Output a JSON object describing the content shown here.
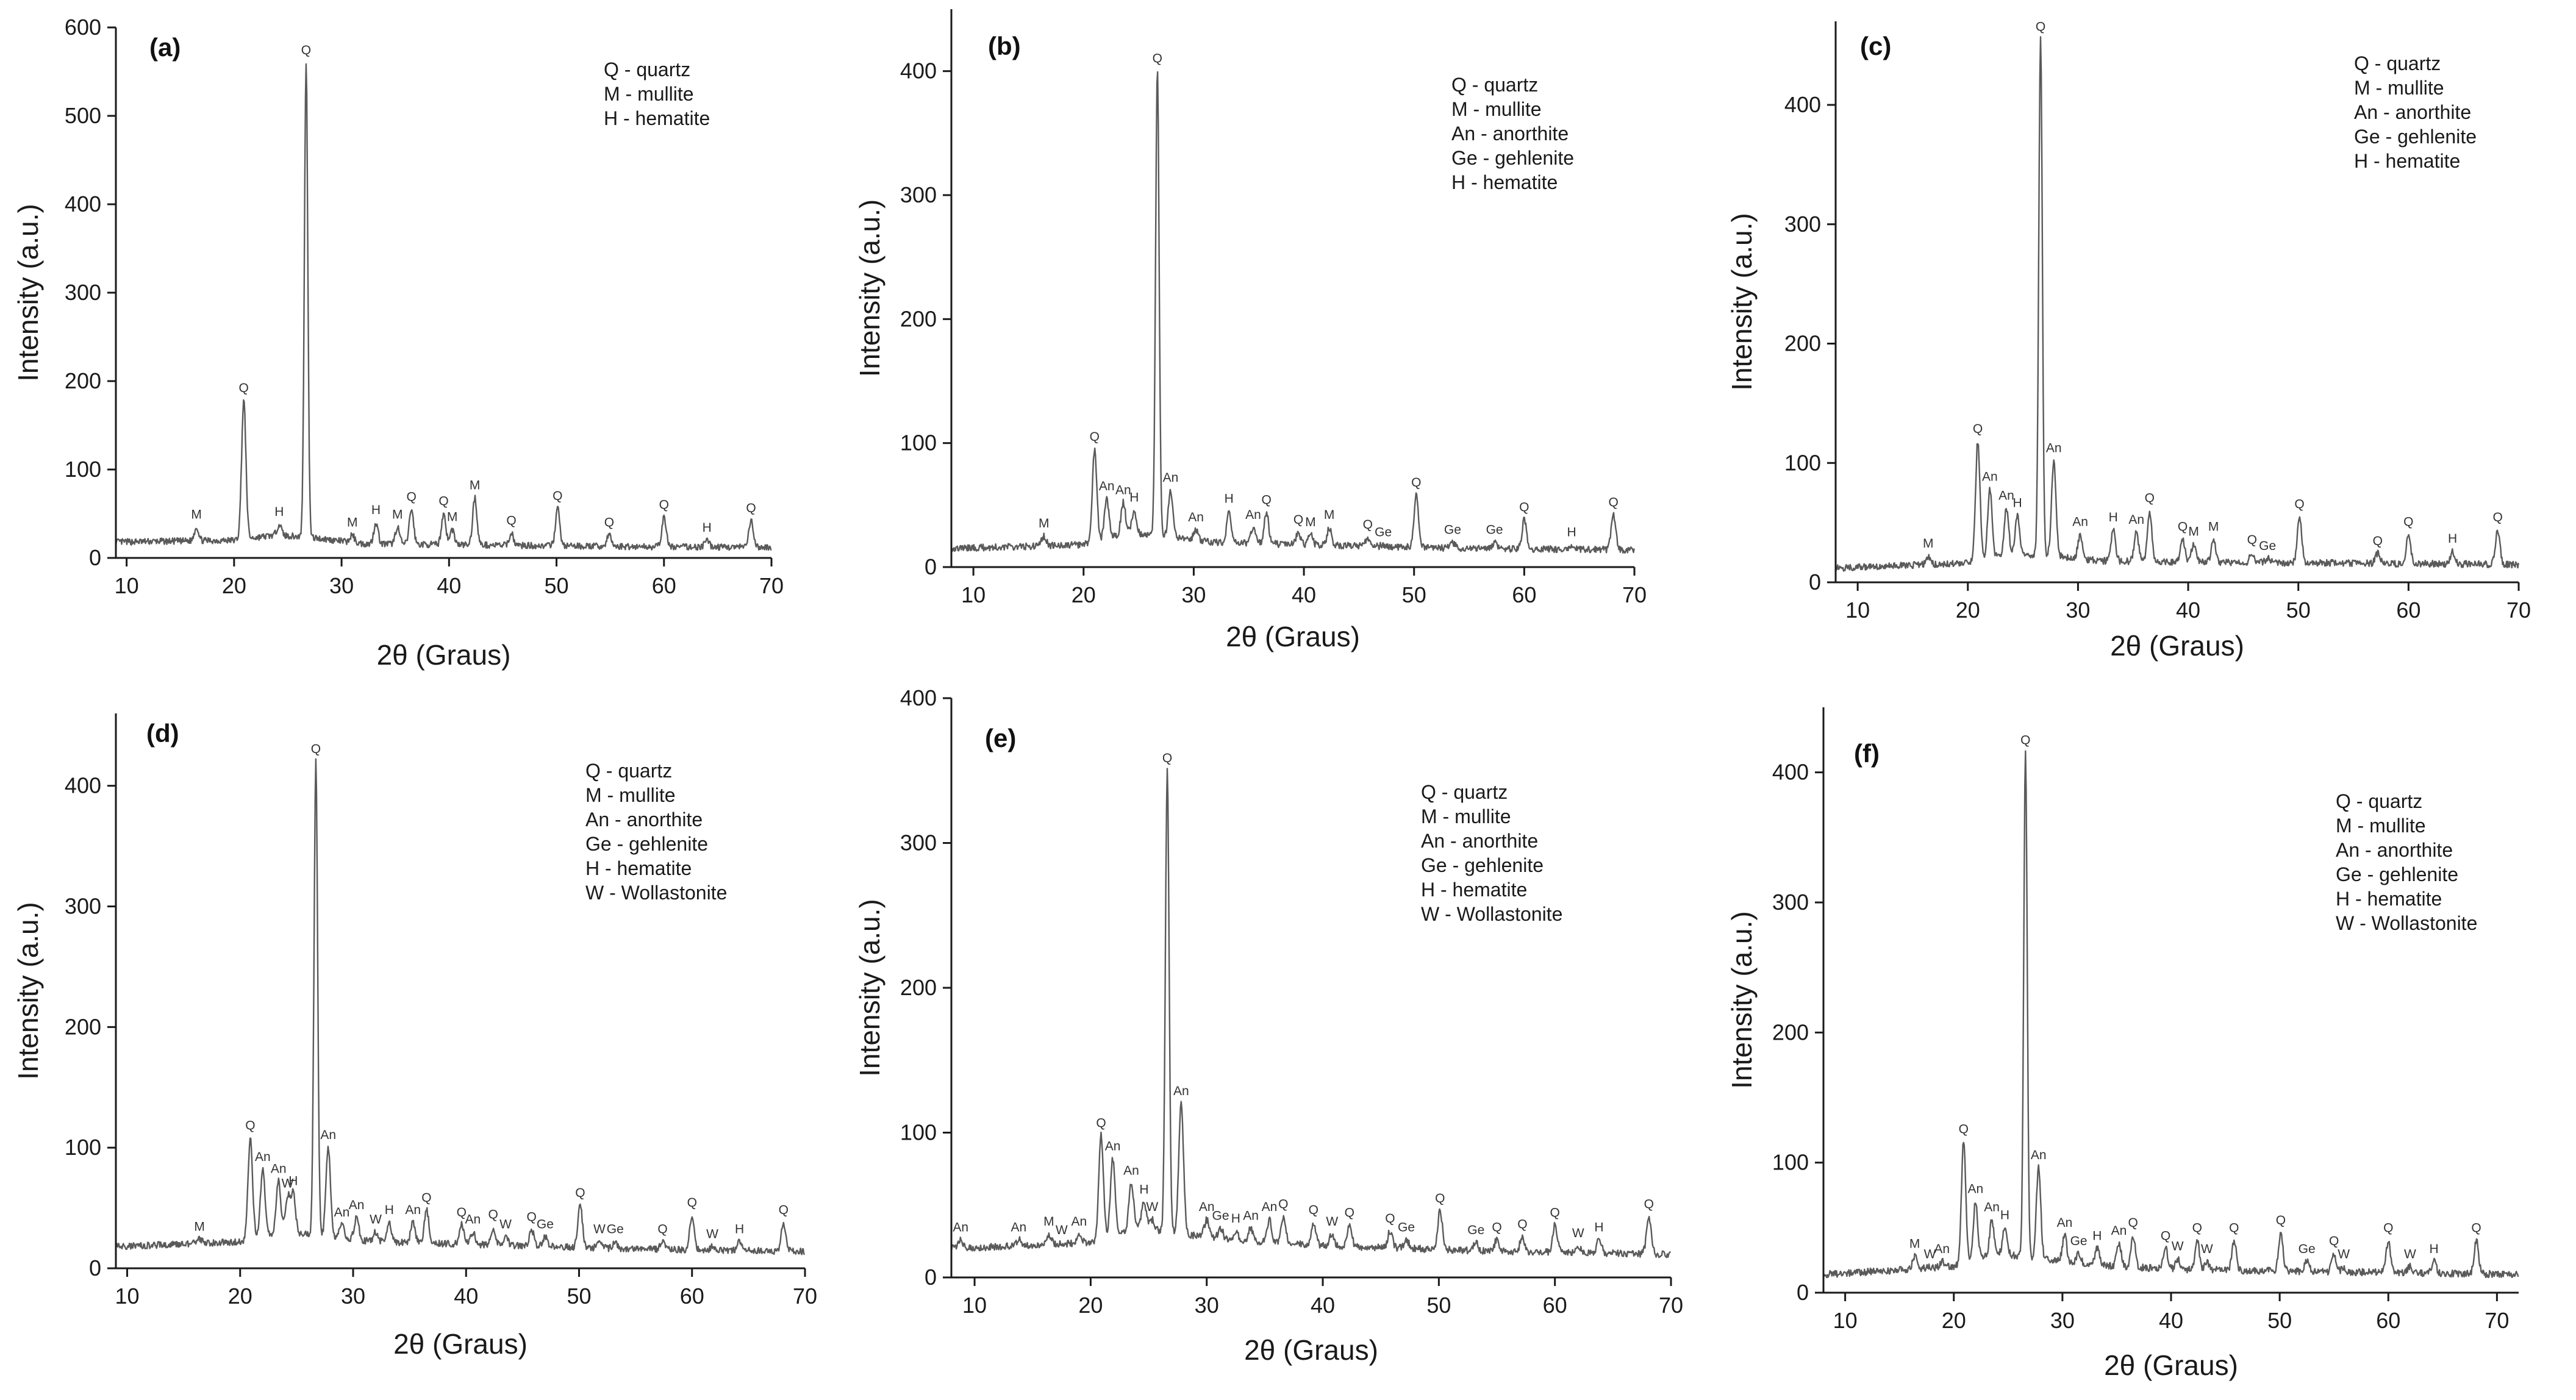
{
  "chart_data": [
    {
      "type": "line",
      "panel": "(a)",
      "xlabel": "2θ (Graus)",
      "ylabel": "Intensity (a.u.)",
      "xlim": [
        9,
        70
      ],
      "ylim": [
        0,
        600
      ],
      "xticks": [
        10,
        20,
        30,
        40,
        50,
        60,
        70
      ],
      "yticks": [
        0,
        100,
        200,
        300,
        400,
        500,
        600
      ],
      "legend": [
        "Q - quartz",
        "M - mullite",
        "H - hematite"
      ],
      "baseline": [
        [
          9,
          18
        ],
        [
          20,
          20
        ],
        [
          24,
          26
        ],
        [
          28,
          22
        ],
        [
          32,
          16
        ],
        [
          40,
          15
        ],
        [
          55,
          13
        ],
        [
          70,
          12
        ]
      ],
      "peaks": [
        {
          "x": 16.5,
          "y": 35,
          "label": "M"
        },
        {
          "x": 20.9,
          "y": 178,
          "label": "Q"
        },
        {
          "x": 24.2,
          "y": 38,
          "label": "H"
        },
        {
          "x": 26.7,
          "y": 560,
          "label": "Q"
        },
        {
          "x": 31.0,
          "y": 26,
          "label": "M"
        },
        {
          "x": 33.2,
          "y": 40,
          "label": "H"
        },
        {
          "x": 35.2,
          "y": 35,
          "label": "M"
        },
        {
          "x": 36.5,
          "y": 55,
          "label": "Q"
        },
        {
          "x": 39.5,
          "y": 50,
          "label": "Q"
        },
        {
          "x": 40.3,
          "y": 32,
          "label": "M"
        },
        {
          "x": 42.4,
          "y": 68,
          "label": "M"
        },
        {
          "x": 45.8,
          "y": 28,
          "label": "Q"
        },
        {
          "x": 50.1,
          "y": 56,
          "label": "Q"
        },
        {
          "x": 54.9,
          "y": 26,
          "label": "Q"
        },
        {
          "x": 60.0,
          "y": 46,
          "label": "Q"
        },
        {
          "x": 64.0,
          "y": 20,
          "label": "H"
        },
        {
          "x": 68.1,
          "y": 42,
          "label": "Q"
        }
      ]
    },
    {
      "type": "line",
      "panel": "(b)",
      "xlabel": "2θ (Graus)",
      "ylabel": "Intensity (a.u.)",
      "xlim": [
        8,
        70
      ],
      "ylim": [
        0,
        450
      ],
      "xticks": [
        10,
        20,
        30,
        40,
        50,
        60,
        70
      ],
      "yticks": [
        0,
        100,
        200,
        300,
        400
      ],
      "legend": [
        "Q - quartz",
        "M - mullite",
        "An - anorthite",
        "Ge - gehlenite",
        "H - hematite"
      ],
      "baseline": [
        [
          8,
          15
        ],
        [
          20,
          18
        ],
        [
          24,
          28
        ],
        [
          28,
          24
        ],
        [
          32,
          20
        ],
        [
          40,
          18
        ],
        [
          55,
          15
        ],
        [
          70,
          14
        ]
      ],
      "peaks": [
        {
          "x": 16.4,
          "y": 25,
          "label": "M"
        },
        {
          "x": 21.0,
          "y": 95,
          "label": "Q"
        },
        {
          "x": 22.1,
          "y": 55,
          "label": "An"
        },
        {
          "x": 23.6,
          "y": 52,
          "label": "An"
        },
        {
          "x": 24.6,
          "y": 46,
          "label": "H"
        },
        {
          "x": 26.7,
          "y": 400,
          "label": "Q"
        },
        {
          "x": 27.9,
          "y": 62,
          "label": "An"
        },
        {
          "x": 30.2,
          "y": 30,
          "label": "An"
        },
        {
          "x": 33.2,
          "y": 45,
          "label": "H"
        },
        {
          "x": 35.4,
          "y": 32,
          "label": "An"
        },
        {
          "x": 36.6,
          "y": 44,
          "label": "Q"
        },
        {
          "x": 39.5,
          "y": 28,
          "label": "Q"
        },
        {
          "x": 40.6,
          "y": 26,
          "label": "M"
        },
        {
          "x": 42.3,
          "y": 32,
          "label": "M"
        },
        {
          "x": 45.8,
          "y": 24,
          "label": "Q"
        },
        {
          "x": 47.2,
          "y": 18,
          "label": "Ge"
        },
        {
          "x": 50.2,
          "y": 58,
          "label": "Q"
        },
        {
          "x": 53.5,
          "y": 20,
          "label": "Ge"
        },
        {
          "x": 57.3,
          "y": 20,
          "label": "Ge"
        },
        {
          "x": 60.0,
          "y": 38,
          "label": "Q"
        },
        {
          "x": 64.3,
          "y": 18,
          "label": "H"
        },
        {
          "x": 68.1,
          "y": 42,
          "label": "Q"
        }
      ]
    },
    {
      "type": "line",
      "panel": "(c)",
      "xlabel": "2θ (Graus)",
      "ylabel": "Intensity (a.u.)",
      "xlim": [
        8,
        70
      ],
      "ylim": [
        0,
        470
      ],
      "xticks": [
        10,
        20,
        30,
        40,
        50,
        60,
        70
      ],
      "yticks": [
        0,
        100,
        200,
        300,
        400
      ],
      "legend": [
        "Q - quartz",
        "M - mullite",
        "An - anorthite",
        "Ge - gehlenite",
        "H - hematite"
      ],
      "baseline": [
        [
          8,
          12
        ],
        [
          20,
          16
        ],
        [
          24,
          24
        ],
        [
          28,
          22
        ],
        [
          32,
          18
        ],
        [
          40,
          17
        ],
        [
          55,
          16
        ],
        [
          70,
          15
        ]
      ],
      "peaks": [
        {
          "x": 16.4,
          "y": 22,
          "label": "M"
        },
        {
          "x": 20.9,
          "y": 118,
          "label": "Q"
        },
        {
          "x": 22.0,
          "y": 78,
          "label": "An"
        },
        {
          "x": 23.5,
          "y": 62,
          "label": "An"
        },
        {
          "x": 24.5,
          "y": 56,
          "label": "H"
        },
        {
          "x": 26.6,
          "y": 455,
          "label": "Q"
        },
        {
          "x": 27.8,
          "y": 102,
          "label": "An"
        },
        {
          "x": 30.2,
          "y": 40,
          "label": "An"
        },
        {
          "x": 33.2,
          "y": 44,
          "label": "H"
        },
        {
          "x": 35.3,
          "y": 42,
          "label": "An"
        },
        {
          "x": 36.5,
          "y": 60,
          "label": "Q"
        },
        {
          "x": 39.5,
          "y": 36,
          "label": "Q"
        },
        {
          "x": 40.5,
          "y": 32,
          "label": "M"
        },
        {
          "x": 42.3,
          "y": 36,
          "label": "M"
        },
        {
          "x": 45.8,
          "y": 25,
          "label": "Q"
        },
        {
          "x": 47.2,
          "y": 20,
          "label": "Ge"
        },
        {
          "x": 50.1,
          "y": 55,
          "label": "Q"
        },
        {
          "x": 57.2,
          "y": 24,
          "label": "Q"
        },
        {
          "x": 60.0,
          "y": 40,
          "label": "Q"
        },
        {
          "x": 64.0,
          "y": 26,
          "label": "H"
        },
        {
          "x": 68.1,
          "y": 44,
          "label": "Q"
        }
      ]
    },
    {
      "type": "line",
      "panel": "(d)",
      "xlabel": "2θ (Graus)",
      "ylabel": "Intensity (a.u.)",
      "xlim": [
        9,
        70
      ],
      "ylim": [
        0,
        460
      ],
      "xticks": [
        10,
        20,
        30,
        40,
        50,
        60,
        70
      ],
      "yticks": [
        0,
        100,
        200,
        300,
        400
      ],
      "legend": [
        "Q - quartz",
        "M - mullite",
        "An - anorthite",
        "Ge - gehlenite",
        "H - hematite",
        "W - Wollastonite"
      ],
      "baseline": [
        [
          9,
          18
        ],
        [
          20,
          22
        ],
        [
          24,
          30
        ],
        [
          28,
          26
        ],
        [
          32,
          22
        ],
        [
          40,
          20
        ],
        [
          55,
          16
        ],
        [
          70,
          14
        ]
      ],
      "peaks": [
        {
          "x": 16.4,
          "y": 24,
          "label": "M"
        },
        {
          "x": 20.9,
          "y": 108,
          "label": "Q"
        },
        {
          "x": 22.0,
          "y": 82,
          "label": "An"
        },
        {
          "x": 23.4,
          "y": 72,
          "label": "An"
        },
        {
          "x": 24.2,
          "y": 60,
          "label": "W"
        },
        {
          "x": 24.7,
          "y": 62,
          "label": "H"
        },
        {
          "x": 26.7,
          "y": 420,
          "label": "Q"
        },
        {
          "x": 27.8,
          "y": 100,
          "label": "An"
        },
        {
          "x": 29.0,
          "y": 36,
          "label": "An"
        },
        {
          "x": 30.3,
          "y": 42,
          "label": "An"
        },
        {
          "x": 32.0,
          "y": 30,
          "label": "W"
        },
        {
          "x": 33.2,
          "y": 38,
          "label": "H"
        },
        {
          "x": 35.3,
          "y": 38,
          "label": "An"
        },
        {
          "x": 36.5,
          "y": 48,
          "label": "Q"
        },
        {
          "x": 39.6,
          "y": 36,
          "label": "Q"
        },
        {
          "x": 40.6,
          "y": 30,
          "label": "An"
        },
        {
          "x": 42.4,
          "y": 34,
          "label": "Q"
        },
        {
          "x": 43.5,
          "y": 26,
          "label": "W"
        },
        {
          "x": 45.8,
          "y": 32,
          "label": "Q"
        },
        {
          "x": 47.0,
          "y": 26,
          "label": "Ge"
        },
        {
          "x": 50.1,
          "y": 52,
          "label": "Q"
        },
        {
          "x": 51.8,
          "y": 22,
          "label": "W"
        },
        {
          "x": 53.2,
          "y": 22,
          "label": "Ge"
        },
        {
          "x": 57.4,
          "y": 22,
          "label": "Q"
        },
        {
          "x": 60.0,
          "y": 44,
          "label": "Q"
        },
        {
          "x": 61.8,
          "y": 18,
          "label": "W"
        },
        {
          "x": 64.2,
          "y": 22,
          "label": "H"
        },
        {
          "x": 68.1,
          "y": 38,
          "label": "Q"
        }
      ]
    },
    {
      "type": "line",
      "panel": "(e)",
      "xlabel": "2θ (Graus)",
      "ylabel": "Intensity (a.u.)",
      "xlim": [
        8,
        70
      ],
      "ylim": [
        0,
        400
      ],
      "xticks": [
        10,
        20,
        30,
        40,
        50,
        60,
        70
      ],
      "yticks": [
        0,
        100,
        200,
        300,
        400
      ],
      "legend": [
        "Q - quartz",
        "M - mullite",
        "An - anorthite",
        "Ge - gehlenite",
        "H - hematite",
        "W - Wollastonite"
      ],
      "baseline": [
        [
          8,
          20
        ],
        [
          20,
          24
        ],
        [
          24,
          34
        ],
        [
          28,
          30
        ],
        [
          32,
          26
        ],
        [
          40,
          22
        ],
        [
          55,
          18
        ],
        [
          70,
          16
        ]
      ],
      "peaks": [
        {
          "x": 8.8,
          "y": 26,
          "label": "An"
        },
        {
          "x": 13.8,
          "y": 26,
          "label": "An"
        },
        {
          "x": 16.4,
          "y": 30,
          "label": "M"
        },
        {
          "x": 17.5,
          "y": 24,
          "label": "W"
        },
        {
          "x": 19.0,
          "y": 30,
          "label": "An"
        },
        {
          "x": 20.9,
          "y": 98,
          "label": "Q"
        },
        {
          "x": 21.9,
          "y": 82,
          "label": "An"
        },
        {
          "x": 23.5,
          "y": 65,
          "label": "An"
        },
        {
          "x": 24.6,
          "y": 52,
          "label": "H"
        },
        {
          "x": 25.3,
          "y": 40,
          "label": "W"
        },
        {
          "x": 26.6,
          "y": 350,
          "label": "Q"
        },
        {
          "x": 27.8,
          "y": 120,
          "label": "An"
        },
        {
          "x": 30.0,
          "y": 40,
          "label": "An"
        },
        {
          "x": 31.2,
          "y": 34,
          "label": "Ge"
        },
        {
          "x": 32.5,
          "y": 32,
          "label": "H"
        },
        {
          "x": 33.8,
          "y": 34,
          "label": "An"
        },
        {
          "x": 35.4,
          "y": 40,
          "label": "An"
        },
        {
          "x": 36.6,
          "y": 42,
          "label": "Q"
        },
        {
          "x": 39.2,
          "y": 38,
          "label": "Q"
        },
        {
          "x": 40.8,
          "y": 30,
          "label": "W"
        },
        {
          "x": 42.3,
          "y": 36,
          "label": "Q"
        },
        {
          "x": 45.8,
          "y": 32,
          "label": "Q"
        },
        {
          "x": 47.2,
          "y": 26,
          "label": "Ge"
        },
        {
          "x": 50.1,
          "y": 46,
          "label": "Q"
        },
        {
          "x": 53.2,
          "y": 24,
          "label": "Ge"
        },
        {
          "x": 55.0,
          "y": 26,
          "label": "Q"
        },
        {
          "x": 57.2,
          "y": 28,
          "label": "Q"
        },
        {
          "x": 60.0,
          "y": 36,
          "label": "Q"
        },
        {
          "x": 62.0,
          "y": 22,
          "label": "W"
        },
        {
          "x": 63.8,
          "y": 26,
          "label": "H"
        },
        {
          "x": 68.1,
          "y": 42,
          "label": "Q"
        }
      ]
    },
    {
      "type": "line",
      "panel": "(f)",
      "xlabel": "2θ (Graus)",
      "ylabel": "Intensity (a.u.)",
      "xlim": [
        8,
        72
      ],
      "ylim": [
        0,
        450
      ],
      "xticks": [
        10,
        20,
        30,
        40,
        50,
        60,
        70
      ],
      "yticks": [
        0,
        100,
        200,
        300,
        400
      ],
      "legend": [
        "Q - quartz",
        "M - mullite",
        "An - anorthite",
        "Ge - gehlenite",
        "H - hematite",
        "W - Wollastonite"
      ],
      "baseline": [
        [
          8,
          14
        ],
        [
          20,
          20
        ],
        [
          24,
          30
        ],
        [
          28,
          26
        ],
        [
          32,
          22
        ],
        [
          40,
          18
        ],
        [
          55,
          16
        ],
        [
          72,
          14
        ]
      ],
      "peaks": [
        {
          "x": 16.4,
          "y": 28,
          "label": "M"
        },
        {
          "x": 17.8,
          "y": 20,
          "label": "W"
        },
        {
          "x": 18.9,
          "y": 24,
          "label": "An"
        },
        {
          "x": 20.9,
          "y": 116,
          "label": "Q"
        },
        {
          "x": 22.0,
          "y": 70,
          "label": "An"
        },
        {
          "x": 23.5,
          "y": 56,
          "label": "An"
        },
        {
          "x": 24.7,
          "y": 50,
          "label": "H"
        },
        {
          "x": 26.6,
          "y": 415,
          "label": "Q"
        },
        {
          "x": 27.8,
          "y": 96,
          "label": "An"
        },
        {
          "x": 30.2,
          "y": 44,
          "label": "An"
        },
        {
          "x": 31.5,
          "y": 30,
          "label": "Ge"
        },
        {
          "x": 33.2,
          "y": 34,
          "label": "H"
        },
        {
          "x": 35.2,
          "y": 38,
          "label": "An"
        },
        {
          "x": 36.5,
          "y": 44,
          "label": "Q"
        },
        {
          "x": 39.5,
          "y": 34,
          "label": "Q"
        },
        {
          "x": 40.6,
          "y": 26,
          "label": "W"
        },
        {
          "x": 42.4,
          "y": 40,
          "label": "Q"
        },
        {
          "x": 43.3,
          "y": 24,
          "label": "W"
        },
        {
          "x": 45.8,
          "y": 40,
          "label": "Q"
        },
        {
          "x": 50.1,
          "y": 46,
          "label": "Q"
        },
        {
          "x": 52.5,
          "y": 24,
          "label": "Ge"
        },
        {
          "x": 55.0,
          "y": 30,
          "label": "Q"
        },
        {
          "x": 55.9,
          "y": 20,
          "label": "W"
        },
        {
          "x": 60.0,
          "y": 40,
          "label": "Q"
        },
        {
          "x": 62.0,
          "y": 20,
          "label": "W"
        },
        {
          "x": 64.2,
          "y": 24,
          "label": "H"
        },
        {
          "x": 68.1,
          "y": 40,
          "label": "Q"
        }
      ]
    }
  ]
}
